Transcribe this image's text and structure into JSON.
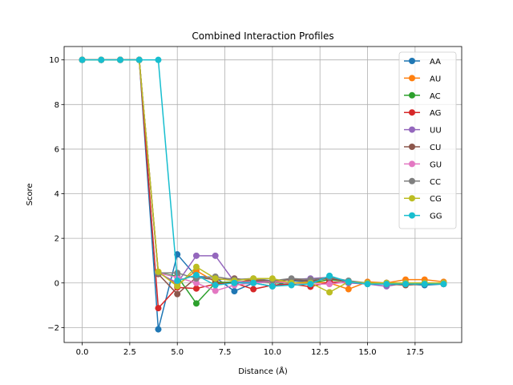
{
  "chart_data": {
    "type": "line",
    "title": "Combined Interaction Profiles",
    "xlabel": "Distance (Å)",
    "ylabel": "Score",
    "xlim": [
      -0.95,
      19.95
    ],
    "ylim": [
      -2.67,
      10.6
    ],
    "xticks": [
      0.0,
      2.5,
      5.0,
      7.5,
      10.0,
      12.5,
      15.0,
      17.5
    ],
    "xtick_labels": [
      "0.0",
      "2.5",
      "5.0",
      "7.5",
      "10.0",
      "12.5",
      "15.0",
      "17.5"
    ],
    "yticks": [
      -2,
      0,
      2,
      4,
      6,
      8,
      10
    ],
    "ytick_labels": [
      "−2",
      "0",
      "2",
      "4",
      "6",
      "8",
      "10"
    ],
    "grid": true,
    "legend_position": "top-right",
    "x": [
      0,
      1,
      2,
      3,
      4,
      5,
      6,
      7,
      8,
      9,
      10,
      11,
      12,
      13,
      14,
      15,
      16,
      17,
      18,
      19
    ],
    "series": [
      {
        "name": "AA",
        "color": "#1f77b4",
        "values": [
          10,
          10,
          10,
          10,
          -2.08,
          1.28,
          0.29,
          0.25,
          -0.37,
          0.0,
          -0.15,
          0.1,
          0.05,
          0.25,
          0.0,
          0.0,
          -0.05,
          -0.05,
          -0.1,
          -0.05
        ]
      },
      {
        "name": "AU",
        "color": "#ff7f0e",
        "values": [
          10,
          10,
          10,
          10,
          0.5,
          -0.1,
          0.55,
          0.05,
          0.0,
          0.15,
          0.1,
          0.0,
          0.05,
          0.0,
          -0.28,
          0.05,
          0.0,
          0.15,
          0.15,
          0.05
        ]
      },
      {
        "name": "AC",
        "color": "#2ca02c",
        "values": [
          10,
          10,
          10,
          10,
          0.45,
          0.3,
          -0.92,
          0.0,
          0.05,
          0.05,
          0.0,
          0.0,
          0.0,
          0.15,
          0.05,
          0.0,
          0.0,
          0.0,
          0.0,
          0.0
        ]
      },
      {
        "name": "AG",
        "color": "#d62728",
        "values": [
          10,
          10,
          10,
          10,
          -1.13,
          -0.2,
          -0.25,
          -0.05,
          0.0,
          -0.28,
          -0.1,
          -0.05,
          -0.17,
          0.05,
          0.0,
          0.0,
          0.0,
          -0.05,
          0.0,
          -0.05
        ]
      },
      {
        "name": "UU",
        "color": "#9467bd",
        "values": [
          10,
          10,
          10,
          10,
          0.45,
          0.0,
          1.22,
          1.22,
          0.05,
          0.05,
          0.1,
          0.15,
          0.2,
          0.25,
          0.0,
          -0.05,
          -0.15,
          0.0,
          -0.05,
          -0.05
        ]
      },
      {
        "name": "CU",
        "color": "#8c564b",
        "values": [
          10,
          10,
          10,
          10,
          0.4,
          -0.5,
          0.25,
          0.15,
          0.2,
          0.1,
          0.1,
          0.15,
          0.1,
          0.2,
          0.05,
          0.0,
          -0.05,
          -0.1,
          -0.05,
          -0.05
        ]
      },
      {
        "name": "GU",
        "color": "#e377c2",
        "values": [
          10,
          10,
          10,
          10,
          0.45,
          0.25,
          0.0,
          -0.35,
          -0.1,
          0.0,
          0.05,
          0.0,
          -0.05,
          -0.05,
          0.05,
          0.0,
          0.0,
          0.0,
          0.0,
          0.0
        ]
      },
      {
        "name": "CC",
        "color": "#7f7f7f",
        "values": [
          10,
          10,
          10,
          10,
          0.45,
          0.45,
          0.2,
          0.28,
          0.15,
          0.2,
          0.1,
          0.2,
          0.15,
          0.25,
          0.1,
          0.0,
          0.0,
          0.0,
          0.0,
          0.0
        ]
      },
      {
        "name": "CG",
        "color": "#bcbd22",
        "values": [
          10,
          10,
          10,
          10,
          0.5,
          -0.15,
          0.72,
          0.2,
          0.1,
          0.2,
          0.2,
          0.0,
          0.0,
          -0.42,
          0.05,
          0.0,
          0.0,
          0.0,
          0.0,
          0.0
        ]
      },
      {
        "name": "GG",
        "color": "#17becf",
        "values": [
          10,
          10,
          10,
          10,
          10,
          0.1,
          0.35,
          -0.1,
          0.0,
          0.0,
          -0.15,
          -0.1,
          -0.05,
          0.32,
          0.05,
          -0.05,
          -0.05,
          -0.05,
          -0.05,
          -0.05
        ]
      }
    ]
  }
}
